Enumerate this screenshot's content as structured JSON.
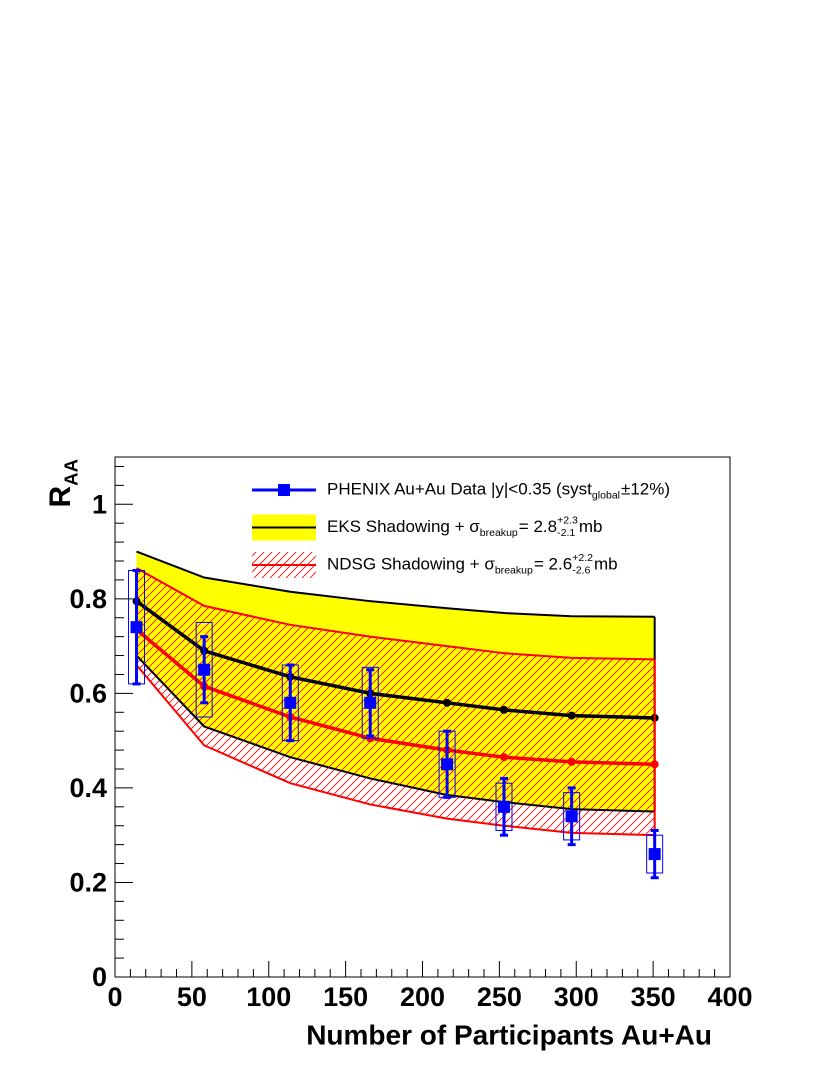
{
  "chart_data": {
    "type": "scatter",
    "xlabel": "Number of Participants Au+Au",
    "ylabel": [
      {
        "text": "R"
      },
      {
        "sub": "AA"
      }
    ],
    "xlim": [
      0,
      400
    ],
    "ylim": [
      0,
      1.1
    ],
    "xticks": [
      0,
      50,
      100,
      150,
      200,
      250,
      300,
      350,
      400
    ],
    "yticks": [
      0,
      0.2,
      0.4,
      0.6,
      0.8,
      1
    ],
    "minor_divisions": 5,
    "series": [
      {
        "name": [
          {
            "text": "PHENIX Au+Au Data |y|<0.35 (syst"
          },
          {
            "sub": "global"
          },
          {
            "text": "±12%)"
          }
        ],
        "color": "#0000ff",
        "x": [
          14,
          58,
          114,
          166,
          216,
          253,
          297,
          351
        ],
        "values": [
          0.74,
          0.65,
          0.58,
          0.58,
          0.45,
          0.36,
          0.34,
          0.26
        ],
        "errors": [
          0.12,
          0.07,
          0.08,
          0.07,
          0.07,
          0.06,
          0.06,
          0.05
        ],
        "syst": [
          0.12,
          0.1,
          0.08,
          0.075,
          0.07,
          0.05,
          0.05,
          0.04
        ]
      },
      {
        "name": [
          {
            "text": "EKS Shadowing + σ"
          },
          {
            "sub": "breakup"
          },
          {
            "text": " = 2.8"
          },
          {
            "sup": "+2.3",
            "sub": "-2.1"
          },
          {
            "text": " mb"
          }
        ],
        "color": "#000000",
        "fill": "#ffff00",
        "x": [
          14,
          58,
          114,
          166,
          216,
          253,
          297,
          351
        ],
        "values": [
          0.795,
          0.69,
          0.635,
          0.6,
          0.58,
          0.565,
          0.553,
          0.548
        ],
        "upper": [
          0.9,
          0.845,
          0.815,
          0.795,
          0.78,
          0.77,
          0.763,
          0.762
        ],
        "lower": [
          0.68,
          0.53,
          0.465,
          0.42,
          0.385,
          0.37,
          0.355,
          0.35
        ]
      },
      {
        "name": [
          {
            "text": "NDSG Shadowing + σ"
          },
          {
            "sub": "breakup"
          },
          {
            "text": " = 2.6"
          },
          {
            "sup": "+2.2",
            "sub": "-2.6"
          },
          {
            "text": " mb"
          }
        ],
        "color": "#ff0000",
        "fill": "hatch",
        "x": [
          14,
          58,
          114,
          166,
          216,
          253,
          297,
          351
        ],
        "values": [
          0.735,
          0.615,
          0.55,
          0.505,
          0.48,
          0.465,
          0.455,
          0.45
        ],
        "upper": [
          0.865,
          0.785,
          0.745,
          0.72,
          0.7,
          0.685,
          0.675,
          0.672
        ],
        "lower": [
          0.66,
          0.49,
          0.41,
          0.365,
          0.335,
          0.32,
          0.305,
          0.3
        ]
      }
    ]
  }
}
